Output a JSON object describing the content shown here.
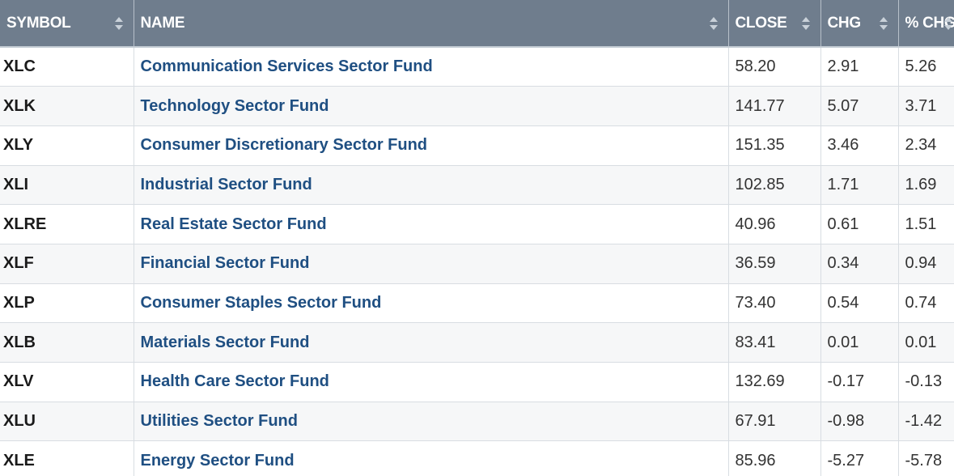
{
  "table": {
    "columns": [
      {
        "label": "SYMBOL",
        "sortable": true
      },
      {
        "label": "NAME",
        "sortable": true
      },
      {
        "label": "CLOSE",
        "sortable": true
      },
      {
        "label": "CHG",
        "sortable": true
      },
      {
        "label": "% CHG",
        "sortable": true
      }
    ],
    "rows": [
      {
        "symbol": "XLC",
        "name": "Communication Services Sector Fund",
        "close": "58.20",
        "chg": "2.91",
        "pct": "5.26"
      },
      {
        "symbol": "XLK",
        "name": "Technology Sector Fund",
        "close": "141.77",
        "chg": "5.07",
        "pct": "3.71"
      },
      {
        "symbol": "XLY",
        "name": "Consumer Discretionary Sector Fund",
        "close": "151.35",
        "chg": "3.46",
        "pct": "2.34"
      },
      {
        "symbol": "XLI",
        "name": "Industrial Sector Fund",
        "close": "102.85",
        "chg": "1.71",
        "pct": "1.69"
      },
      {
        "symbol": "XLRE",
        "name": "Real Estate Sector Fund",
        "close": "40.96",
        "chg": "0.61",
        "pct": "1.51"
      },
      {
        "symbol": "XLF",
        "name": "Financial Sector Fund",
        "close": "36.59",
        "chg": "0.34",
        "pct": "0.94"
      },
      {
        "symbol": "XLP",
        "name": "Consumer Staples Sector Fund",
        "close": "73.40",
        "chg": "0.54",
        "pct": "0.74"
      },
      {
        "symbol": "XLB",
        "name": "Materials Sector Fund",
        "close": "83.41",
        "chg": "0.01",
        "pct": "0.01"
      },
      {
        "symbol": "XLV",
        "name": "Health Care Sector Fund",
        "close": "132.69",
        "chg": "-0.17",
        "pct": "-0.13"
      },
      {
        "symbol": "XLU",
        "name": "Utilities Sector Fund",
        "close": "67.91",
        "chg": "-0.98",
        "pct": "-1.42"
      },
      {
        "symbol": "XLE",
        "name": "Energy Sector Fund",
        "close": "85.96",
        "chg": "-5.27",
        "pct": "-5.78"
      }
    ]
  },
  "colors": {
    "header_bg": "#6f7d8d",
    "header_text": "#ffffff",
    "link": "#1f4f82"
  },
  "icons": {
    "sort": "sort-arrows-icon"
  }
}
